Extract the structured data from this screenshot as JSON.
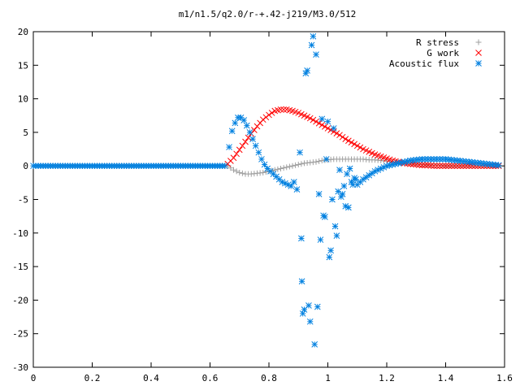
{
  "chart_data": {
    "type": "scatter",
    "title": "m1/n1.5/q2.0/r-+.42-j219/M3.0/512",
    "xlabel": "",
    "ylabel": "",
    "xlim": [
      0,
      1.6
    ],
    "ylim": [
      -30,
      20
    ],
    "x_ticks": [
      "0",
      "0.2",
      "0.4",
      "0.6",
      "0.8",
      "1",
      "1.2",
      "1.4",
      "1.6"
    ],
    "y_ticks": [
      "20",
      "15",
      "10",
      "5",
      "0",
      "-5",
      "-10",
      "-15",
      "-20",
      "-25",
      "-30"
    ],
    "grid": false,
    "legend_position": "top-right",
    "series": [
      {
        "name": "R stress",
        "marker": "plus",
        "color": "#a0a0a0",
        "x": [
          0.0,
          0.1,
          0.2,
          0.3,
          0.4,
          0.5,
          0.6,
          0.66,
          0.68,
          0.7,
          0.72,
          0.74,
          0.76,
          0.78,
          0.8,
          0.82,
          0.84,
          0.86,
          0.88,
          0.9,
          0.92,
          0.94,
          0.96,
          0.98,
          1.0,
          1.02,
          1.04,
          1.06,
          1.08,
          1.1,
          1.12,
          1.14,
          1.16,
          1.18,
          1.2,
          1.22,
          1.24,
          1.26,
          1.28,
          1.3,
          1.32,
          1.34,
          1.36,
          1.38,
          1.4,
          1.42,
          1.44,
          1.46,
          1.48,
          1.5,
          1.52,
          1.54,
          1.56,
          1.58
        ],
        "y": [
          0,
          0,
          0,
          0,
          0,
          0,
          0,
          0,
          -0.6,
          -1.0,
          -1.2,
          -1.2,
          -1.1,
          -1.0,
          -0.8,
          -0.6,
          -0.4,
          -0.2,
          0.0,
          0.2,
          0.4,
          0.5,
          0.6,
          0.8,
          0.9,
          1.0,
          1.0,
          1.0,
          1.0,
          1.0,
          1.0,
          0.9,
          0.9,
          0.8,
          0.7,
          0.6,
          0.5,
          0.4,
          0.3,
          0.2,
          0.2,
          0.1,
          0.1,
          0.1,
          0.0,
          0.0,
          0.0,
          0.0,
          0.0,
          0.0,
          0.0,
          0.0,
          0.0,
          0.0
        ]
      },
      {
        "name": "G work",
        "marker": "cross",
        "color": "#ff0000",
        "x": [
          0.66,
          0.68,
          0.7,
          0.72,
          0.74,
          0.76,
          0.78,
          0.8,
          0.82,
          0.84,
          0.86,
          0.88,
          0.9,
          0.92,
          0.94,
          0.96,
          0.98,
          1.0,
          1.02,
          1.04,
          1.06,
          1.08,
          1.1,
          1.12,
          1.14,
          1.16,
          1.18,
          1.2,
          1.22,
          1.24,
          1.26,
          1.28,
          1.3,
          1.32,
          1.34,
          1.36,
          1.38,
          1.4,
          1.42,
          1.44,
          1.46,
          1.48,
          1.5,
          1.52,
          1.54,
          1.56,
          1.58
        ],
        "y": [
          0.3,
          1.2,
          2.4,
          3.6,
          4.8,
          5.9,
          6.9,
          7.6,
          8.2,
          8.4,
          8.4,
          8.2,
          7.9,
          7.5,
          7.1,
          6.6,
          6.1,
          5.6,
          5.1,
          4.6,
          4.0,
          3.5,
          3.0,
          2.5,
          2.1,
          1.7,
          1.4,
          1.1,
          0.8,
          0.6,
          0.4,
          0.3,
          0.2,
          0.1,
          0.1,
          0.0,
          0.0,
          0.0,
          0.0,
          0.0,
          0.0,
          0.0,
          0.0,
          0.0,
          0.0,
          0.0,
          0.0
        ]
      },
      {
        "name": "Acoustic flux",
        "marker": "star",
        "color": "#0080e0",
        "x": [
          0.0,
          0.05,
          0.1,
          0.15,
          0.2,
          0.25,
          0.3,
          0.35,
          0.4,
          0.45,
          0.5,
          0.55,
          0.6,
          0.65,
          0.665,
          0.675,
          0.685,
          0.695,
          0.705,
          0.715,
          0.725,
          0.735,
          0.745,
          0.755,
          0.765,
          0.775,
          0.785,
          0.795,
          0.805,
          0.815,
          0.825,
          0.835,
          0.845,
          0.855,
          0.865,
          0.875,
          0.885,
          0.895,
          0.905,
          0.91,
          0.912,
          0.915,
          0.92,
          0.925,
          0.93,
          0.935,
          0.94,
          0.945,
          0.95,
          0.955,
          0.96,
          0.965,
          0.97,
          0.975,
          0.98,
          0.985,
          0.99,
          0.995,
          1.0,
          1.005,
          1.01,
          1.015,
          1.02,
          1.025,
          1.03,
          1.035,
          1.04,
          1.045,
          1.05,
          1.055,
          1.06,
          1.065,
          1.07,
          1.075,
          1.08,
          1.085,
          1.09,
          1.095,
          1.1,
          1.11,
          1.12,
          1.14,
          1.16,
          1.18,
          1.2,
          1.22,
          1.24,
          1.26,
          1.28,
          1.3,
          1.32,
          1.34,
          1.36,
          1.38,
          1.4,
          1.42,
          1.44,
          1.46,
          1.48,
          1.5,
          1.52,
          1.54,
          1.56,
          1.58
        ],
        "y": [
          0,
          0,
          0,
          0,
          0,
          0,
          0,
          0,
          0,
          0,
          0,
          0,
          0,
          0,
          2.8,
          5.2,
          6.4,
          7.2,
          7.2,
          6.8,
          6.0,
          5.0,
          4.0,
          3.0,
          2.0,
          1.0,
          0.2,
          -0.4,
          -0.8,
          -1.2,
          -1.6,
          -2.0,
          -2.4,
          -2.6,
          -2.8,
          -3.0,
          -2.4,
          -3.5,
          2.0,
          -10.8,
          -17.2,
          -22.0,
          -21.4,
          13.8,
          14.2,
          -20.8,
          -23.2,
          18.0,
          19.3,
          -26.6,
          16.6,
          -21.0,
          -4.2,
          -11.0,
          7.0,
          -7.4,
          -7.6,
          1.0,
          6.6,
          -13.6,
          -12.6,
          -5.0,
          5.6,
          -9.0,
          -10.4,
          -3.8,
          -0.6,
          -4.6,
          -4.2,
          -3.0,
          -6.0,
          -1.2,
          -6.2,
          -0.4,
          -2.4,
          -2.8,
          -1.8,
          -2.0,
          -2.8,
          -2.4,
          -2.0,
          -1.4,
          -0.8,
          -0.4,
          0.0,
          0.2,
          0.4,
          0.6,
          0.8,
          0.9,
          1.0,
          1.0,
          1.0,
          1.0,
          1.0,
          0.9,
          0.8,
          0.7,
          0.6,
          0.5,
          0.4,
          0.3,
          0.2,
          0.1
        ]
      }
    ]
  }
}
